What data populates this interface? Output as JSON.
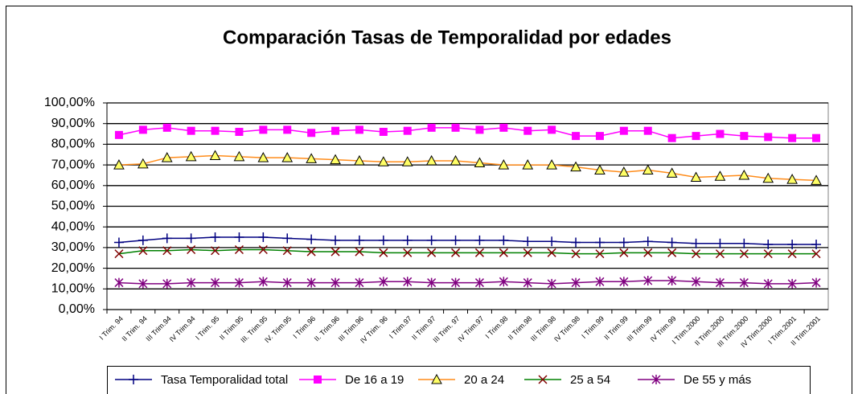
{
  "chart_data": {
    "type": "line",
    "title": "Comparación Tasas de Temporalidad por edades",
    "categories": [
      "I Trim. 94",
      "II Trim. 94",
      "III Trim.94",
      "IV Trim.94",
      "I Trim. 95",
      "II Trim.95",
      "III. Trim.95",
      "IV. Trim.95",
      "I Trim.96",
      "II. Trim.96",
      "III Trim.96",
      "IV Trim. 96",
      "I Trim.97",
      "II Trim.97",
      "III Trim. 97",
      "IV Trim.97",
      "I Trim.98",
      "II Trim.98",
      "III Trim.98",
      "IV Trim.98",
      "I Trim.99",
      "II Trim.99",
      "III Trim.99",
      "IV Trim.99",
      "I Trim.2000",
      "II Trim.2000",
      "III Trim.2000",
      "IV Trim.2000",
      "I Trim.2001",
      "II Trim.2001"
    ],
    "series": [
      {
        "name": "Tasa Temporalidad total",
        "color": "#000080",
        "marker": "plus",
        "marker_color": "#000080",
        "values": [
          32.5,
          33.5,
          34.5,
          34.5,
          35,
          35,
          35,
          34.5,
          34,
          33.5,
          33.5,
          33.5,
          33.5,
          33.5,
          33.5,
          33.5,
          33.5,
          33,
          33,
          32.5,
          32.5,
          32.5,
          33,
          32.5,
          32,
          32,
          32,
          31.5,
          31.5,
          31.5
        ]
      },
      {
        "name": "De 16 a 19",
        "color": "#ff00ff",
        "marker": "square",
        "marker_color": "#ff00ff",
        "values": [
          84.5,
          87,
          88,
          86.5,
          86.5,
          86,
          87,
          87,
          85.5,
          86.5,
          87,
          86,
          86.5,
          88,
          88,
          87,
          88,
          86.5,
          87,
          84,
          84,
          86.5,
          86.5,
          83,
          84,
          85,
          84,
          83.5,
          83,
          83
        ]
      },
      {
        "name": "20 a 24",
        "color": "#ff8c1a",
        "marker": "triangle",
        "marker_color": "#ffff66",
        "values": [
          70,
          70.5,
          73.5,
          74,
          74.5,
          74,
          73.5,
          73.5,
          73,
          72.5,
          72,
          71.5,
          71.5,
          72,
          72,
          71,
          70,
          70,
          70,
          69,
          67.5,
          66.5,
          67.5,
          66,
          64,
          64.5,
          65,
          63.5,
          63,
          62.5
        ]
      },
      {
        "name": "25 a 54",
        "color": "#008000",
        "marker": "x",
        "marker_color": "#800000",
        "values": [
          27,
          28.5,
          28.5,
          29,
          28.5,
          29,
          29,
          28.5,
          28,
          28,
          28,
          27.5,
          27.5,
          27.5,
          27.5,
          27.5,
          27.5,
          27.5,
          27.5,
          27,
          27,
          27.5,
          27.5,
          27.5,
          27,
          27,
          27,
          27,
          27,
          27
        ]
      },
      {
        "name": "De 55 y más",
        "color": "#800080",
        "marker": "asterisk",
        "marker_color": "#800080",
        "values": [
          13,
          12.5,
          12.5,
          13,
          13,
          13,
          13.5,
          13,
          13,
          13,
          13,
          13.5,
          13.5,
          13,
          13,
          13,
          13.5,
          13,
          12.5,
          13,
          13.5,
          13.5,
          14,
          14,
          13.5,
          13,
          13,
          12.5,
          12.5,
          13
        ]
      }
    ],
    "ylim": [
      0,
      100
    ],
    "yticks": [
      {
        "value": 0,
        "label": "0,00%"
      },
      {
        "value": 10,
        "label": "10,00%"
      },
      {
        "value": 20,
        "label": "20,00%"
      },
      {
        "value": 30,
        "label": "30,00%"
      },
      {
        "value": 40,
        "label": "40,00%"
      },
      {
        "value": 50,
        "label": "50,00%"
      },
      {
        "value": 60,
        "label": "60,00%"
      },
      {
        "value": 70,
        "label": "70,00%"
      },
      {
        "value": 80,
        "label": "80,00%"
      },
      {
        "value": 90,
        "label": "90,00%"
      },
      {
        "value": 100,
        "label": "100,00%"
      }
    ],
    "grid": true,
    "legend": "bottom"
  }
}
